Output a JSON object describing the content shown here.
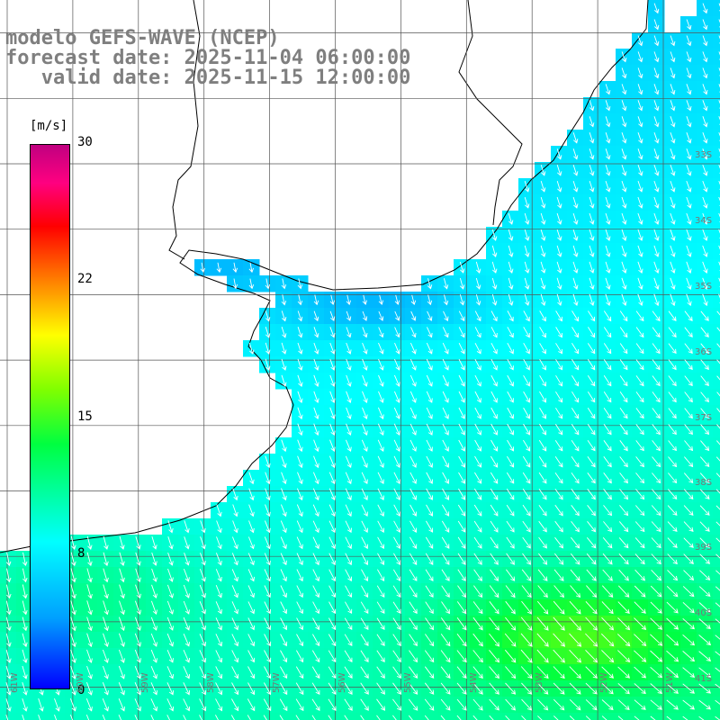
{
  "title": {
    "line1": "modelo GEFS-WAVE (NCEP)",
    "line2": "forecast date: 2025-11-04 06:00:00",
    "line3": "   valid date: 2025-11-15 12:00:00"
  },
  "colorbar": {
    "unit": "[m/s]",
    "ticks": [
      "30",
      "22",
      "15",
      "8",
      "0"
    ],
    "tick_values": [
      30,
      22,
      15,
      8,
      0
    ],
    "stops": [
      {
        "value": 0,
        "color": "#0000ff"
      },
      {
        "value": 4,
        "color": "#00a0ff"
      },
      {
        "value": 8,
        "color": "#00ffff"
      },
      {
        "value": 13,
        "color": "#00ff40"
      },
      {
        "value": 16,
        "color": "#80ff00"
      },
      {
        "value": 19.5,
        "color": "#ffff00"
      },
      {
        "value": 22.5,
        "color": "#ff8000"
      },
      {
        "value": 25.5,
        "color": "#ff0000"
      },
      {
        "value": 28,
        "color": "#ff0080"
      },
      {
        "value": 30,
        "color": "#c00080"
      }
    ]
  },
  "grid": {
    "lat_labels": [
      "33S",
      "34S",
      "35S",
      "36S",
      "37S",
      "38S",
      "39S",
      "40S",
      "41S"
    ],
    "lon_labels": [
      "61W",
      "60W",
      "59W",
      "58W",
      "57W",
      "56W",
      "55W",
      "54W",
      "53W",
      "52W",
      "51W"
    ]
  },
  "colors": {
    "land": "#ffffff",
    "coastline": "#000000",
    "gridline": "#555555",
    "arrow": "#ffffff",
    "title_text": "#7f7f7f"
  }
}
